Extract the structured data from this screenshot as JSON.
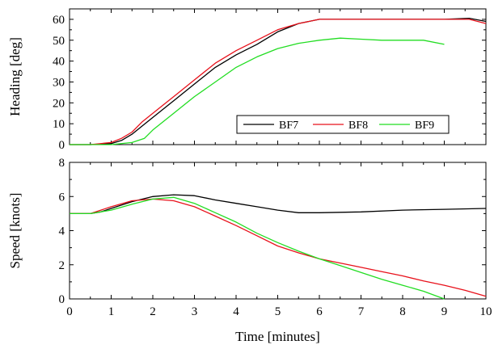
{
  "chart_data": [
    {
      "type": "line",
      "ylabel": "Heading [deg]",
      "xlim": [
        0,
        10
      ],
      "ylim": [
        0,
        65
      ],
      "x_ticks": [
        0,
        1,
        2,
        3,
        4,
        5,
        6,
        7,
        8,
        9,
        10
      ],
      "y_ticks": [
        0,
        10,
        20,
        30,
        40,
        50,
        60
      ],
      "legend_position": "lower-right",
      "series": [
        {
          "name": "BF7",
          "color": "#000000",
          "points": [
            [
              0,
              0
            ],
            [
              0.5,
              0
            ],
            [
              1,
              0.5
            ],
            [
              1.25,
              2
            ],
            [
              1.5,
              5
            ],
            [
              1.75,
              9
            ],
            [
              2,
              13
            ],
            [
              2.5,
              21
            ],
            [
              3,
              29
            ],
            [
              3.5,
              37
            ],
            [
              4,
              43
            ],
            [
              4.5,
              48
            ],
            [
              5,
              54
            ],
            [
              5.5,
              58
            ],
            [
              6,
              60
            ],
            [
              7,
              60
            ],
            [
              8,
              60
            ],
            [
              9,
              60
            ],
            [
              9.6,
              60.5
            ],
            [
              10,
              59
            ]
          ]
        },
        {
          "name": "BF8",
          "color": "#e8111b",
          "points": [
            [
              0,
              0
            ],
            [
              0.5,
              0
            ],
            [
              1,
              1
            ],
            [
              1.25,
              3
            ],
            [
              1.5,
              6
            ],
            [
              1.75,
              11
            ],
            [
              2,
              15
            ],
            [
              2.5,
              23
            ],
            [
              3,
              31
            ],
            [
              3.5,
              39
            ],
            [
              4,
              45
            ],
            [
              4.5,
              50
            ],
            [
              5,
              55
            ],
            [
              5.5,
              58
            ],
            [
              6,
              60
            ],
            [
              7,
              60
            ],
            [
              8,
              60
            ],
            [
              9,
              60
            ],
            [
              9.6,
              60
            ],
            [
              10,
              58
            ]
          ]
        },
        {
          "name": "BF9",
          "color": "#22dd22",
          "points": [
            [
              0,
              0
            ],
            [
              0.5,
              0
            ],
            [
              1,
              0
            ],
            [
              1.5,
              1
            ],
            [
              1.8,
              3
            ],
            [
              2,
              7
            ],
            [
              2.5,
              15
            ],
            [
              3,
              23
            ],
            [
              3.5,
              30
            ],
            [
              4,
              37
            ],
            [
              4.5,
              42
            ],
            [
              5,
              46
            ],
            [
              5.5,
              48.5
            ],
            [
              6,
              50
            ],
            [
              6.5,
              51
            ],
            [
              7,
              50.5
            ],
            [
              7.5,
              50
            ],
            [
              8,
              50
            ],
            [
              8.5,
              50
            ],
            [
              9,
              48
            ]
          ]
        }
      ]
    },
    {
      "type": "line",
      "xlabel": "Time [minutes]",
      "ylabel": "Speed [knots]",
      "xlim": [
        0,
        10
      ],
      "ylim": [
        0,
        8
      ],
      "x_ticks": [
        0,
        1,
        2,
        3,
        4,
        5,
        6,
        7,
        8,
        9,
        10
      ],
      "y_ticks": [
        0,
        2,
        4,
        6,
        8
      ],
      "series": [
        {
          "name": "BF7",
          "color": "#000000",
          "points": [
            [
              0,
              5
            ],
            [
              0.5,
              5
            ],
            [
              0.75,
              5.1
            ],
            [
              1,
              5.3
            ],
            [
              1.5,
              5.7
            ],
            [
              2,
              6
            ],
            [
              2.5,
              6.1
            ],
            [
              3,
              6.05
            ],
            [
              3.5,
              5.8
            ],
            [
              4,
              5.6
            ],
            [
              4.5,
              5.4
            ],
            [
              5,
              5.2
            ],
            [
              5.5,
              5.05
            ],
            [
              6,
              5.05
            ],
            [
              7,
              5.1
            ],
            [
              8,
              5.2
            ],
            [
              9,
              5.25
            ],
            [
              10,
              5.3
            ]
          ]
        },
        {
          "name": "BF8",
          "color": "#e8111b",
          "points": [
            [
              0,
              5
            ],
            [
              0.5,
              5
            ],
            [
              1,
              5.4
            ],
            [
              1.5,
              5.75
            ],
            [
              2,
              5.85
            ],
            [
              2.5,
              5.75
            ],
            [
              3,
              5.4
            ],
            [
              3.5,
              4.85
            ],
            [
              4,
              4.3
            ],
            [
              4.5,
              3.7
            ],
            [
              5,
              3.1
            ],
            [
              5.5,
              2.7
            ],
            [
              6,
              2.35
            ],
            [
              6.5,
              2.1
            ],
            [
              7,
              1.85
            ],
            [
              7.5,
              1.6
            ],
            [
              8,
              1.35
            ],
            [
              8.5,
              1.05
            ],
            [
              9,
              0.8
            ],
            [
              9.5,
              0.5
            ],
            [
              10,
              0.15
            ]
          ]
        },
        {
          "name": "BF9",
          "color": "#22dd22",
          "points": [
            [
              0,
              5
            ],
            [
              0.5,
              5
            ],
            [
              1,
              5.2
            ],
            [
              1.5,
              5.55
            ],
            [
              2,
              5.85
            ],
            [
              2.5,
              5.95
            ],
            [
              3,
              5.6
            ],
            [
              3.5,
              5.05
            ],
            [
              4,
              4.5
            ],
            [
              4.5,
              3.85
            ],
            [
              5,
              3.3
            ],
            [
              5.5,
              2.8
            ],
            [
              6,
              2.35
            ],
            [
              6.5,
              1.95
            ],
            [
              7,
              1.55
            ],
            [
              7.5,
              1.15
            ],
            [
              8,
              0.8
            ],
            [
              8.5,
              0.45
            ],
            [
              9,
              0
            ]
          ]
        }
      ]
    }
  ]
}
